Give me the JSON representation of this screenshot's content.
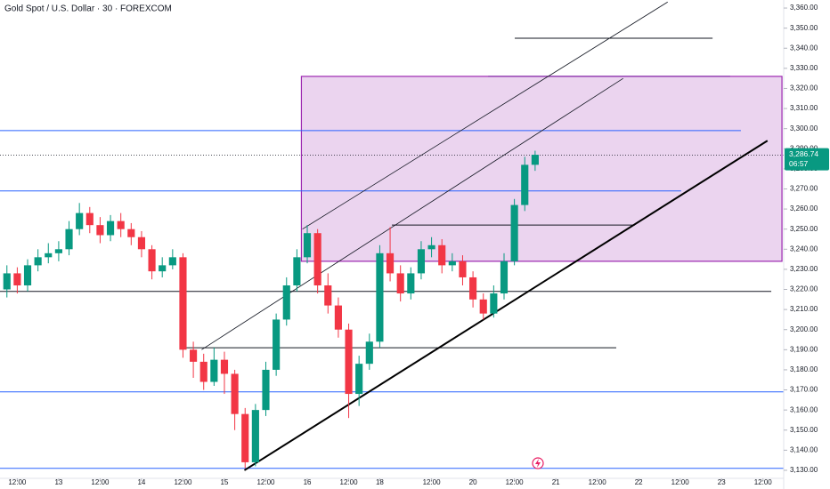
{
  "chart_data": {
    "type": "candlestick",
    "title": "Gold Spot / U.S. Dollar · 30 · FOREXCOM",
    "up_color": "#089981",
    "down_color": "#f23645",
    "x": [
      9,
      12,
      15,
      18,
      21,
      24,
      27,
      30,
      33,
      36,
      39,
      42,
      45,
      48,
      51,
      54,
      57,
      60,
      63,
      66,
      69,
      72,
      75,
      78,
      81,
      84,
      87,
      90,
      93,
      96,
      99,
      102,
      105,
      108,
      111,
      114,
      117,
      120,
      123,
      126,
      129,
      132,
      135,
      138,
      141,
      144,
      147,
      150,
      153,
      156,
      159,
      162
    ],
    "open": [
      3220,
      3228,
      3222,
      3232,
      3236,
      3238,
      3240,
      3250,
      3258,
      3252,
      3247,
      3254,
      3250,
      3246,
      3240,
      3229,
      3232,
      3236,
      3190,
      3184,
      3174,
      3185,
      3178,
      3158,
      3134,
      3160,
      3180,
      3205,
      3222,
      3236,
      3248,
      3222,
      3212,
      3200,
      3168,
      3183,
      3194,
      3238,
      3228,
      3218,
      3228,
      3240,
      3242,
      3232,
      3234,
      3226,
      3215,
      3208,
      3218,
      3234,
      3262,
      3282
    ],
    "high": [
      3232,
      3231,
      3235,
      3240,
      3243,
      3244,
      3254,
      3263,
      3261,
      3256,
      3257,
      3258,
      3253,
      3249,
      3242,
      3236,
      3240,
      3238,
      3194,
      3188,
      3191,
      3189,
      3180,
      3161,
      3163,
      3184,
      3208,
      3226,
      3240,
      3252,
      3250,
      3228,
      3216,
      3203,
      3187,
      3198,
      3242,
      3251,
      3232,
      3231,
      3244,
      3246,
      3245,
      3238,
      3237,
      3229,
      3218,
      3222,
      3238,
      3265,
      3286,
      3289
    ],
    "low": [
      3216,
      3218,
      3219,
      3229,
      3233,
      3234,
      3237,
      3247,
      3248,
      3243,
      3244,
      3246,
      3242,
      3236,
      3225,
      3226,
      3230,
      3186,
      3176,
      3170,
      3172,
      3168,
      3150,
      3131,
      3132,
      3157,
      3177,
      3202,
      3219,
      3233,
      3218,
      3208,
      3196,
      3156,
      3162,
      3180,
      3191,
      3224,
      3214,
      3215,
      3225,
      3236,
      3228,
      3229,
      3222,
      3211,
      3205,
      3206,
      3215,
      3232,
      3259,
      3279
    ],
    "close": [
      3228,
      3222,
      3232,
      3236,
      3238,
      3240,
      3250,
      3258,
      3252,
      3247,
      3254,
      3250,
      3246,
      3240,
      3229,
      3232,
      3236,
      3190,
      3184,
      3174,
      3185,
      3178,
      3158,
      3134,
      3160,
      3180,
      3205,
      3222,
      3236,
      3248,
      3222,
      3212,
      3200,
      3168,
      3183,
      3194,
      3238,
      3228,
      3218,
      3228,
      3240,
      3242,
      3232,
      3234,
      3226,
      3215,
      3208,
      3218,
      3234,
      3262,
      3282,
      3287
    ],
    "xlim": [
      7,
      234
    ],
    "ylim": [
      3126,
      3364
    ],
    "xticks": [
      {
        "value": 12,
        "label": "12:00"
      },
      {
        "value": 24,
        "label": "13"
      },
      {
        "value": 36,
        "label": "12:00"
      },
      {
        "value": 48,
        "label": "14"
      },
      {
        "value": 60,
        "label": "12:00"
      },
      {
        "value": 72,
        "label": "15"
      },
      {
        "value": 84,
        "label": "12:00"
      },
      {
        "value": 96,
        "label": "16"
      },
      {
        "value": 108,
        "label": "12:00"
      },
      {
        "value": 117,
        "label": "18"
      },
      {
        "value": 132,
        "label": "12:00"
      },
      {
        "value": 144,
        "label": "20"
      },
      {
        "value": 156,
        "label": "12:00"
      },
      {
        "value": 168,
        "label": "21"
      },
      {
        "value": 180,
        "label": "12:00"
      },
      {
        "value": 192,
        "label": "22"
      },
      {
        "value": 204,
        "label": "12:00"
      },
      {
        "value": 216,
        "label": "23"
      },
      {
        "value": 228,
        "label": "12:00"
      }
    ],
    "yticks": [
      {
        "value": 3130,
        "label": "3,130.00"
      },
      {
        "value": 3140,
        "label": "3,140.00"
      },
      {
        "value": 3150,
        "label": "3,150.00"
      },
      {
        "value": 3160,
        "label": "3,160.00"
      },
      {
        "value": 3170,
        "label": "3,170.00"
      },
      {
        "value": 3180,
        "label": "3,180.00"
      },
      {
        "value": 3190,
        "label": "3,190.00"
      },
      {
        "value": 3200,
        "label": "3,200.00"
      },
      {
        "value": 3210,
        "label": "3,210.00"
      },
      {
        "value": 3220,
        "label": "3,220.00"
      },
      {
        "value": 3230,
        "label": "3,230.00"
      },
      {
        "value": 3240,
        "label": "3,240.00"
      },
      {
        "value": 3250,
        "label": "3,250.00"
      },
      {
        "value": 3260,
        "label": "3,260.00"
      },
      {
        "value": 3270,
        "label": "3,270.00"
      },
      {
        "value": 3280,
        "label": "3,280.00"
      },
      {
        "value": 3290,
        "label": "3,290.00"
      },
      {
        "value": 3300,
        "label": "3,300.00"
      },
      {
        "value": 3310,
        "label": "3,310.00"
      },
      {
        "value": 3320,
        "label": "3,320.00"
      },
      {
        "value": 3330,
        "label": "3,330.00"
      },
      {
        "value": 3340,
        "label": "3,340.00"
      },
      {
        "value": 3350,
        "label": "3,350.00"
      },
      {
        "value": 3360,
        "label": "3,360.00"
      }
    ],
    "last_price": 3286.74,
    "last_price_label": "3,286.74",
    "countdown": "06:57",
    "box": {
      "x": [
        94.3,
        233.5
      ],
      "y": [
        3234,
        3326
      ],
      "color": "#9c27b0"
    },
    "hlines": [
      {
        "value": 3299,
        "x": [
          7,
          221.6
        ],
        "color": "#2962ff"
      },
      {
        "value": 3269,
        "x": [
          7,
          204.3
        ],
        "color": "#2962ff"
      },
      {
        "value": 3169,
        "x": [
          7,
          234
        ],
        "color": "#2962ff"
      },
      {
        "value": 3131,
        "x": [
          7,
          234
        ],
        "color": "#2962ff"
      },
      {
        "value": 3219,
        "x": [
          7,
          230.4
        ],
        "color": "#131722"
      },
      {
        "value": 3191,
        "x": [
          60.4,
          185.5
        ],
        "color": "#131722"
      },
      {
        "value": 3252,
        "x": [
          120.5,
          190.9
        ],
        "color": "#131722"
      },
      {
        "value": 3345,
        "x": [
          156.1,
          213.4
        ],
        "color": "#131722"
      },
      {
        "value": 3326,
        "x": [
          148.4,
          218.5
        ],
        "color": "#7b1fa2"
      }
    ],
    "trendlines": [
      {
        "x": [
          77.8,
          229.3
        ],
        "y": [
          3130,
          3294
        ],
        "color": "#000000",
        "width": 2
      },
      {
        "x": [
          65.4,
          187.5
        ],
        "y": [
          3190,
          3325
        ],
        "color": "#131722",
        "width": 0.8
      },
      {
        "x": [
          94.6,
          200.4
        ],
        "y": [
          3250,
          3363
        ],
        "color": "#131722",
        "width": 0.8
      }
    ]
  }
}
